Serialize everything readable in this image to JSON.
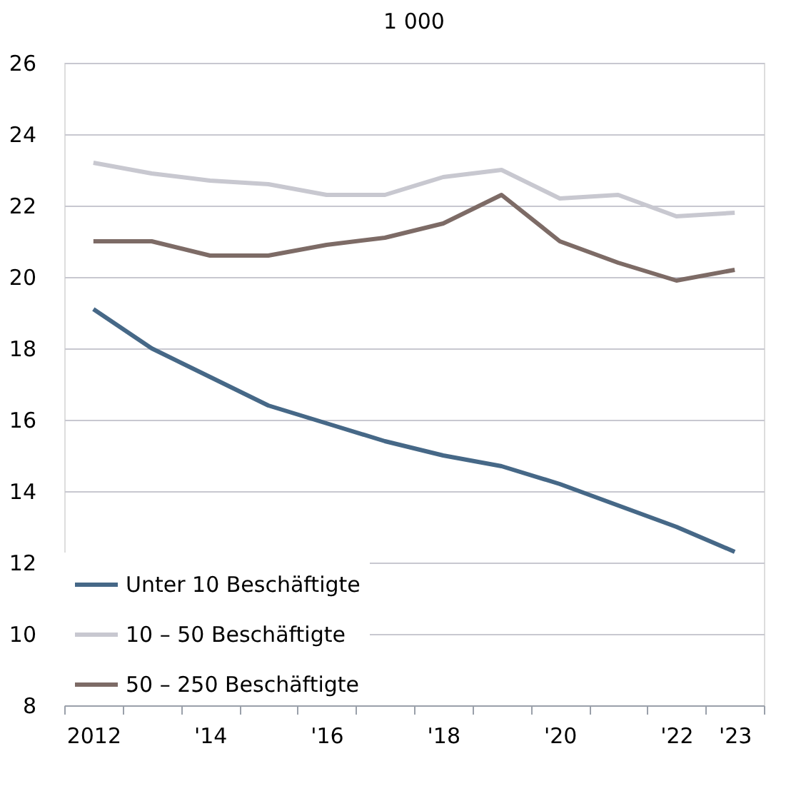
{
  "chart_data": {
    "type": "line",
    "title": "1 000",
    "categories": [
      "2012",
      null,
      "'14",
      null,
      "'16",
      null,
      "'18",
      null,
      "'20",
      null,
      "'22",
      "'23"
    ],
    "series": [
      {
        "name": "Unter 10 Beschäftigte",
        "color": "#466887",
        "values": [
          19.1,
          18.0,
          17.2,
          16.4,
          15.9,
          15.4,
          15.0,
          14.7,
          14.2,
          13.6,
          13.0,
          12.3
        ]
      },
      {
        "name": "10 – 50 Beschäftigte",
        "color": "#c8c8d0",
        "values": [
          23.2,
          22.9,
          22.7,
          22.6,
          22.3,
          22.3,
          22.8,
          23.0,
          22.2,
          22.3,
          21.7,
          21.8
        ]
      },
      {
        "name": "50 – 250 Beschäftigte",
        "color": "#7d6b66",
        "values": [
          21.0,
          21.0,
          20.6,
          20.6,
          20.9,
          21.1,
          21.5,
          22.3,
          21.0,
          20.4,
          19.9,
          20.2
        ]
      }
    ],
    "ylim": [
      8,
      26
    ],
    "yticks": [
      8,
      10,
      12,
      14,
      16,
      18,
      20,
      22,
      24,
      26
    ],
    "grid": "y",
    "legend": "bottom left",
    "marker": "none",
    "line_style": "solid"
  }
}
